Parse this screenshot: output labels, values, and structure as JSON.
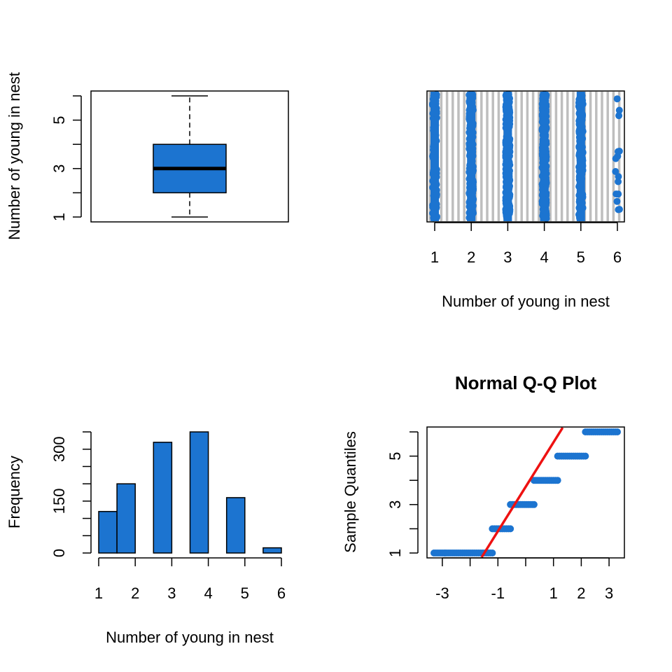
{
  "colors": {
    "fill": "#1C74D0",
    "point": "#1C74D0",
    "qq_line": "#EE1111",
    "strip_grid": "#BEBEBE",
    "axis": "#000000"
  },
  "chart_data": [
    {
      "type": "box",
      "panel": "top-left",
      "ylabel": "Number of young in nest",
      "ylim": [
        1,
        6
      ],
      "y_tick_labels": [
        "1",
        "3",
        "5"
      ],
      "stats": {
        "min": 1,
        "q1": 2,
        "median": 3,
        "q3": 4,
        "max": 6
      }
    },
    {
      "type": "scatter",
      "subtype": "stripchart",
      "panel": "top-right",
      "xlabel": "Number of young in nest",
      "xlim": [
        1,
        6
      ],
      "x_tick_labels": [
        "1",
        "2",
        "3",
        "4",
        "5",
        "6"
      ],
      "categories": [
        1,
        2,
        3,
        4,
        5,
        6
      ],
      "counts": [
        120,
        200,
        320,
        350,
        160,
        15
      ],
      "grid": "vertical",
      "y_axis": "none"
    },
    {
      "type": "bar",
      "subtype": "histogram",
      "panel": "bottom-left",
      "xlabel": "Number of young in nest",
      "ylabel": "Frequency",
      "xlim": [
        1,
        6
      ],
      "ylim": [
        0,
        350
      ],
      "x_tick_labels": [
        "1",
        "2",
        "3",
        "4",
        "5",
        "6"
      ],
      "y_tick_labels": [
        "0",
        "150",
        "300"
      ],
      "bins": [
        {
          "from": 1.0,
          "to": 1.5,
          "value": 120
        },
        {
          "from": 1.5,
          "to": 2.0,
          "value": 200
        },
        {
          "from": 2.0,
          "to": 2.5,
          "value": 0
        },
        {
          "from": 2.5,
          "to": 3.0,
          "value": 320
        },
        {
          "from": 3.0,
          "to": 3.5,
          "value": 0
        },
        {
          "from": 3.5,
          "to": 4.0,
          "value": 350
        },
        {
          "from": 4.0,
          "to": 4.5,
          "value": 0
        },
        {
          "from": 4.5,
          "to": 5.0,
          "value": 160
        },
        {
          "from": 5.0,
          "to": 5.5,
          "value": 0
        },
        {
          "from": 5.5,
          "to": 6.0,
          "value": 15
        }
      ]
    },
    {
      "type": "scatter",
      "subtype": "normal-qq",
      "panel": "bottom-right",
      "title": "Normal Q-Q Plot",
      "ylabel": "Sample Quantiles",
      "xlim": [
        -3.4,
        3.4
      ],
      "ylim": [
        1,
        6
      ],
      "x_tick_labels": [
        "-3",
        "-1",
        "1",
        "2",
        "3"
      ],
      "y_tick_labels": [
        "1",
        "3",
        "5"
      ],
      "steps": [
        {
          "y": 1,
          "x_from": -3.3,
          "x_to": -1.2
        },
        {
          "y": 2,
          "x_from": -1.2,
          "x_to": -0.55
        },
        {
          "y": 3,
          "x_from": -0.55,
          "x_to": 0.3
        },
        {
          "y": 4,
          "x_from": 0.3,
          "x_to": 1.15
        },
        {
          "y": 5,
          "x_from": 1.15,
          "x_to": 2.15
        },
        {
          "y": 6,
          "x_from": 2.15,
          "x_to": 3.3
        }
      ],
      "reference_line": {
        "slope": 1.95,
        "intercept": 3.7
      }
    }
  ]
}
